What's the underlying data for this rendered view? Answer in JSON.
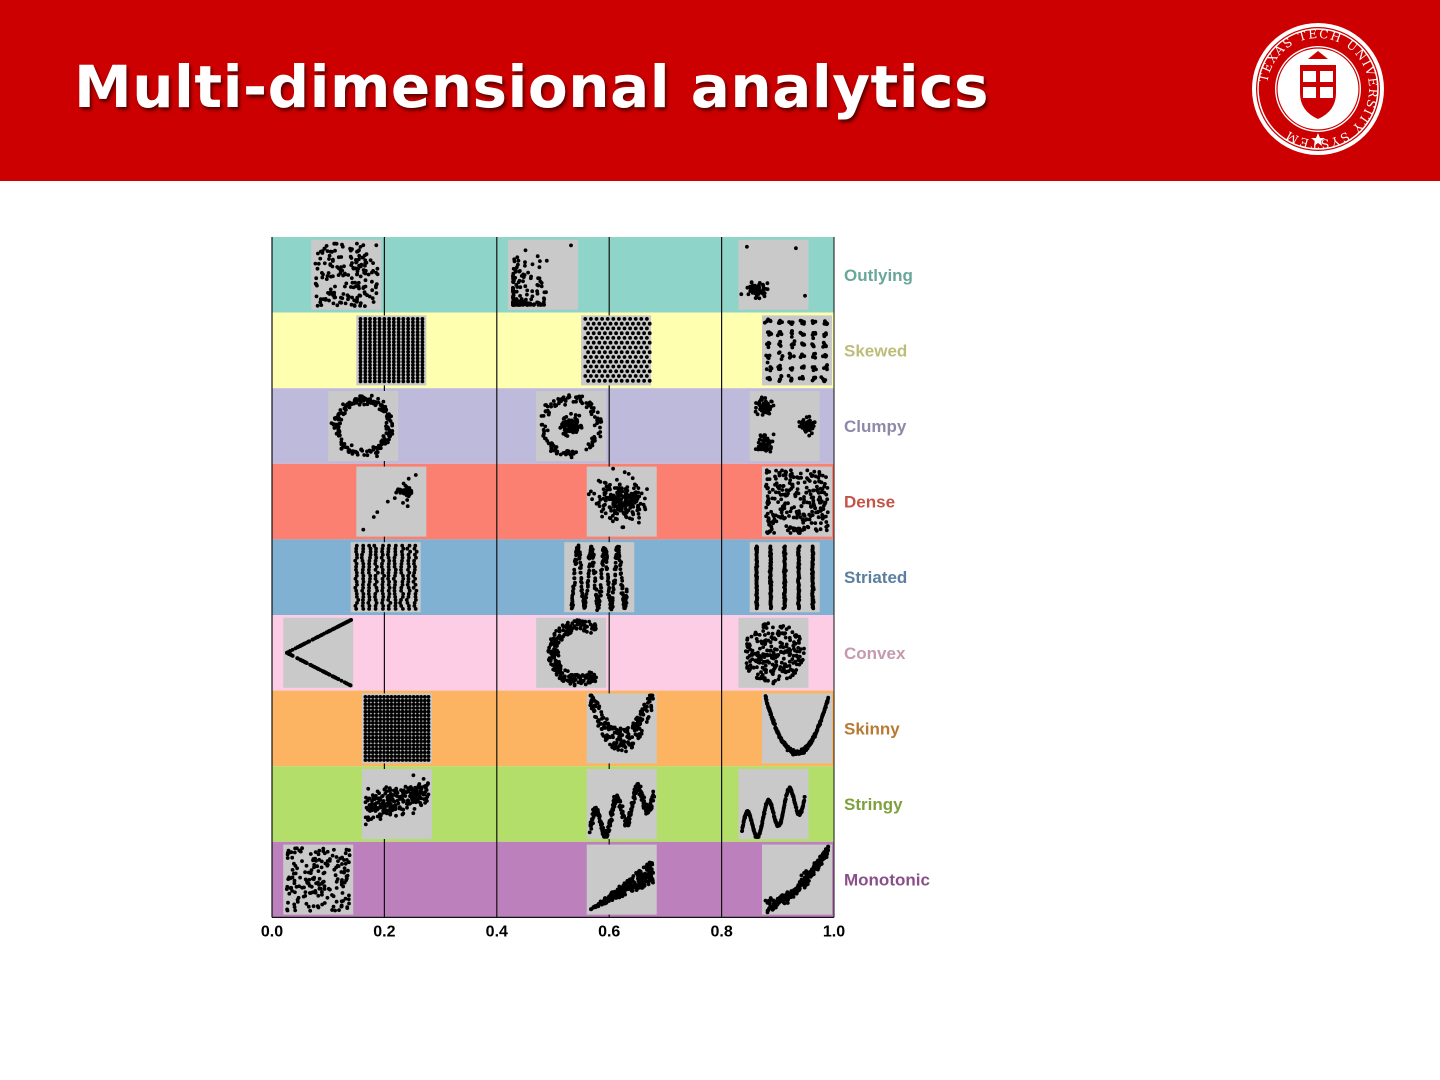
{
  "slide": {
    "title": "Multi-dimensional analytics",
    "header_color": "#cc0000",
    "seal": {
      "text": "TEXAS TECH UNIVERSITY SYSTEM",
      "color": "#cc0000"
    }
  },
  "chart_data": {
    "type": "scatter",
    "title": "",
    "xlabel": "",
    "ylabel": "",
    "xlim": [
      0.0,
      1.0
    ],
    "x_ticks": [
      "0.0",
      "0.2",
      "0.4",
      "0.6",
      "0.8",
      "1.0"
    ],
    "x_tick_values": [
      0.0,
      0.2,
      0.4,
      0.6,
      0.8,
      1.0
    ],
    "gridlines_x": [
      0.2,
      0.4,
      0.6,
      0.8
    ],
    "legend": "right",
    "rows": [
      {
        "label": "Outlying",
        "band_color": "#8fd4c8",
        "label_color": "#6aa79b",
        "positions": [
          0.07,
          0.42,
          0.83
        ],
        "shapes": [
          "uniform",
          "skew-corner",
          "cluster-outliers"
        ]
      },
      {
        "label": "Skewed",
        "band_color": "#ffffb0",
        "label_color": "#bdbd79",
        "positions": [
          0.15,
          0.55,
          0.93
        ],
        "shapes": [
          "grid-dense",
          "hex-grid",
          "grid-clumps"
        ]
      },
      {
        "label": "Clumpy",
        "band_color": "#bebadb",
        "label_color": "#8d89a8",
        "positions": [
          0.1,
          0.47,
          0.85
        ],
        "shapes": [
          "ring",
          "ring-core",
          "three-clumps"
        ]
      },
      {
        "label": "Dense",
        "band_color": "#fb8072",
        "label_color": "#c35548",
        "positions": [
          0.15,
          0.56,
          0.94
        ],
        "shapes": [
          "sparse-cross",
          "blob",
          "uniform-dense"
        ]
      },
      {
        "label": "Striated",
        "band_color": "#80b1d3",
        "label_color": "#5a7fa0",
        "positions": [
          0.14,
          0.52,
          0.85
        ],
        "shapes": [
          "dotted-columns",
          "wave-vertical",
          "bars"
        ]
      },
      {
        "label": "Convex",
        "band_color": "#fccde5",
        "label_color": "#c39aae",
        "positions": [
          0.02,
          0.47,
          0.83
        ],
        "shapes": [
          "v-shape",
          "crescent",
          "disk"
        ]
      },
      {
        "label": "Skinny",
        "band_color": "#fdb462",
        "label_color": "#b87a33",
        "positions": [
          0.16,
          0.56,
          0.91
        ],
        "shapes": [
          "grid-full",
          "noisy-parabola",
          "parabola"
        ]
      },
      {
        "label": "Stringy",
        "band_color": "#b3de69",
        "label_color": "#7fa13d",
        "positions": [
          0.16,
          0.56,
          0.83
        ],
        "shapes": [
          "noisy-linear",
          "wave-up-noisy",
          "wave-up"
        ]
      },
      {
        "label": "Monotonic",
        "band_color": "#bc80bd",
        "label_color": "#8a4f8b",
        "positions": [
          0.02,
          0.56,
          0.94
        ],
        "shapes": [
          "uniform",
          "wedge",
          "curve-up"
        ]
      }
    ]
  }
}
